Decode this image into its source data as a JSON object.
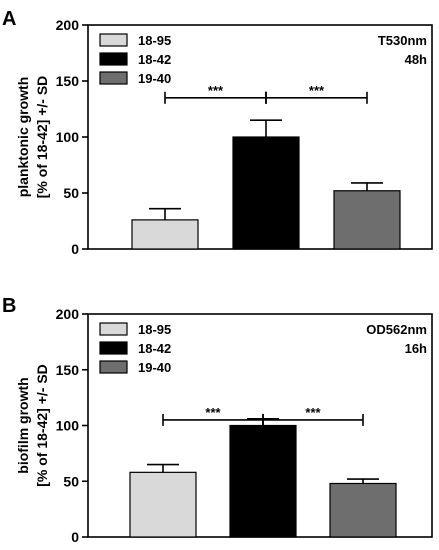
{
  "chart_data": [
    {
      "panel": "A",
      "type": "bar",
      "ylabel_line1": "planktonic growth",
      "ylabel_line2": "[% of 18-42] +/- SD",
      "ylim": [
        0,
        200
      ],
      "yticks": [
        0,
        50,
        100,
        150,
        200
      ],
      "categories": [
        "18-95",
        "18-42",
        "19-40"
      ],
      "values": [
        26,
        100,
        52
      ],
      "errors": [
        10,
        15,
        7
      ],
      "colors": [
        "#d9d9d9",
        "#000000",
        "#6e6e6e"
      ],
      "legend": [
        "18-95",
        "18-42",
        "19-40"
      ],
      "legend_position": "top-left",
      "annotation_line1": "T530nm",
      "annotation_line2": "48h",
      "significance": [
        {
          "from": 0,
          "to": 1,
          "y": 135,
          "label": "***"
        },
        {
          "from": 1,
          "to": 2,
          "y": 135,
          "label": "***"
        }
      ]
    },
    {
      "panel": "B",
      "type": "bar",
      "ylabel_line1": "biofilm growth",
      "ylabel_line2": "[% of 18-42] +/- SD",
      "ylim": [
        0,
        200
      ],
      "yticks": [
        0,
        50,
        100,
        150,
        200
      ],
      "categories": [
        "18-95",
        "18-42",
        "19-40"
      ],
      "values": [
        58,
        100,
        48
      ],
      "errors": [
        7,
        6,
        4
      ],
      "colors": [
        "#d9d9d9",
        "#000000",
        "#6e6e6e"
      ],
      "legend": [
        "18-95",
        "18-42",
        "19-40"
      ],
      "legend_position": "top-left",
      "annotation_line1": "OD562nm",
      "annotation_line2": "16h",
      "significance": [
        {
          "from": 0,
          "to": 1,
          "y": 105,
          "label": "***"
        },
        {
          "from": 1,
          "to": 2,
          "y": 105,
          "label": "***"
        }
      ]
    }
  ]
}
